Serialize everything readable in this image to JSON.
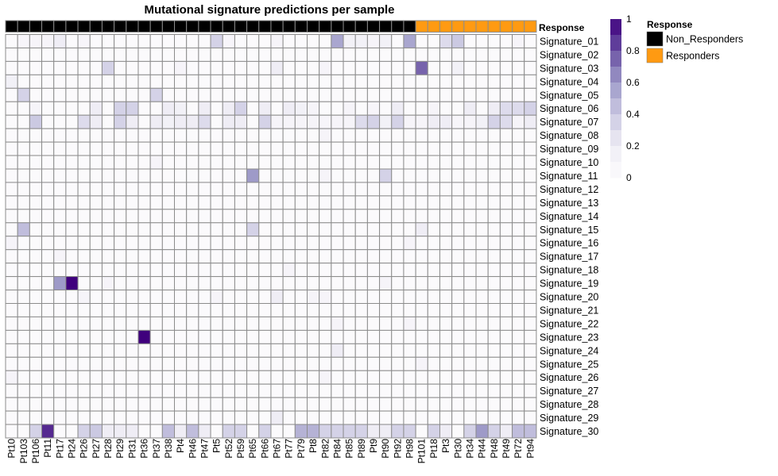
{
  "chart_data": {
    "type": "heatmap",
    "title": "Mutational signature predictions per sample",
    "annotation_label": "Response",
    "samples": [
      "Pt10",
      "Pt103",
      "Pt106",
      "Pt11",
      "Pt17",
      "Pt24",
      "Pt26",
      "Pt27",
      "Pt28",
      "Pt29",
      "Pt31",
      "Pt36",
      "Pt37",
      "Pt38",
      "Pt4",
      "Pt46",
      "Pt47",
      "Pt5",
      "Pt52",
      "Pt59",
      "Pt65",
      "Pt66",
      "Pt67",
      "Pt77",
      "Pt79",
      "Pt8",
      "Pt82",
      "Pt84",
      "Pt85",
      "Pt89",
      "Pt9",
      "Pt90",
      "Pt92",
      "Pt98",
      "Pt101",
      "Pt18",
      "Pt3",
      "Pt30",
      "Pt34",
      "Pt44",
      "Pt48",
      "Pt49",
      "Pt72",
      "Pt94"
    ],
    "response": [
      "Non_Responders",
      "Non_Responders",
      "Non_Responders",
      "Non_Responders",
      "Non_Responders",
      "Non_Responders",
      "Non_Responders",
      "Non_Responders",
      "Non_Responders",
      "Non_Responders",
      "Non_Responders",
      "Non_Responders",
      "Non_Responders",
      "Non_Responders",
      "Non_Responders",
      "Non_Responders",
      "Non_Responders",
      "Non_Responders",
      "Non_Responders",
      "Non_Responders",
      "Non_Responders",
      "Non_Responders",
      "Non_Responders",
      "Non_Responders",
      "Non_Responders",
      "Non_Responders",
      "Non_Responders",
      "Non_Responders",
      "Non_Responders",
      "Non_Responders",
      "Non_Responders",
      "Non_Responders",
      "Non_Responders",
      "Non_Responders",
      "Responders",
      "Responders",
      "Responders",
      "Responders",
      "Responders",
      "Responders",
      "Responders",
      "Responders",
      "Responders",
      "Responders"
    ],
    "signatures": [
      "Signature_01",
      "Signature_02",
      "Signature_03",
      "Signature_04",
      "Signature_05",
      "Signature_06",
      "Signature_07",
      "Signature_08",
      "Signature_09",
      "Signature_10",
      "Signature_11",
      "Signature_12",
      "Signature_13",
      "Signature_14",
      "Signature_15",
      "Signature_16",
      "Signature_17",
      "Signature_18",
      "Signature_19",
      "Signature_20",
      "Signature_21",
      "Signature_22",
      "Signature_23",
      "Signature_24",
      "Signature_25",
      "Signature_26",
      "Signature_27",
      "Signature_28",
      "Signature_29",
      "Signature_30"
    ],
    "values": {
      "Signature_01": {
        "Pt103": 0.08,
        "Pt106": 0.1,
        "Pt11": 0.1,
        "Pt17": 0.2,
        "Pt26": 0.08,
        "Pt5": 0.35,
        "Pt52": 0.08,
        "Pt67": 0.1,
        "Pt84": 0.55,
        "Pt85": 0.15,
        "Pt89": 0.15,
        "Pt9": 0.1,
        "Pt90": 0.15,
        "Pt98": 0.55,
        "Pt3": 0.3,
        "Pt30": 0.4,
        "Pt72": 0.1
      },
      "Signature_03": {
        "Pt28": 0.35,
        "Pt4": 0.1,
        "Pt67": 0.2,
        "Pt82": 0.1,
        "Pt101": 0.75,
        "Pt30": 0.15
      },
      "Signature_04": {
        "Pt10": 0.15
      },
      "Signature_05": {
        "Pt103": 0.35,
        "Pt37": 0.35
      },
      "Signature_06": {
        "Pt106": 0.1,
        "Pt27": 0.2,
        "Pt29": 0.35,
        "Pt31": 0.35,
        "Pt38": 0.2,
        "Pt4": 0.15,
        "Pt47": 0.2,
        "Pt52": 0.2,
        "Pt59": 0.35,
        "Pt66": 0.2,
        "Pt77": 0.2,
        "Pt79": 0.15,
        "Pt8": 0.1,
        "Pt85": 0.1,
        "Pt9": 0.08,
        "Pt92": 0.2,
        "Pt18": 0.1,
        "Pt34": 0.2,
        "Pt48": 0.2,
        "Pt49": 0.3,
        "Pt72": 0.3,
        "Pt94": 0.35
      },
      "Signature_07": {
        "Pt106": 0.4,
        "Pt26": 0.3,
        "Pt27": 0.2,
        "Pt29": 0.35,
        "Pt31": 0.2,
        "Pt37": 0.2,
        "Pt38": 0.15,
        "Pt4": 0.2,
        "Pt46": 0.2,
        "Pt47": 0.3,
        "Pt52": 0.2,
        "Pt59": 0.2,
        "Pt66": 0.35,
        "Pt67": 0.1,
        "Pt77": 0.1,
        "Pt79": 0.1,
        "Pt8": 0.1,
        "Pt82": 0.08,
        "Pt84": 0.1,
        "Pt85": 0.1,
        "Pt89": 0.3,
        "Pt9": 0.35,
        "Pt90": 0.15,
        "Pt92": 0.35,
        "Pt98": 0.1,
        "Pt101": 0.1,
        "Pt18": 0.2,
        "Pt3": 0.2,
        "Pt30": 0.08,
        "Pt34": 0.1,
        "Pt44": 0.15,
        "Pt48": 0.35,
        "Pt49": 0.3,
        "Pt72": 0.1,
        "Pt94": 0.2
      },
      "Signature_08": {
        "Pt82": 0.1
      },
      "Signature_10": {
        "Pt37": 0.1
      },
      "Signature_11": {
        "Pt65": 0.6,
        "Pt82": 0.1,
        "Pt90": 0.35
      },
      "Signature_15": {
        "Pt103": 0.45,
        "Pt65": 0.35,
        "Pt101": 0.2
      },
      "Signature_16": {
        "Pt10": 0.1,
        "Pt98": 0.1
      },
      "Signature_17": {
        "Pt17": 0.1
      },
      "Signature_18": {
        "Pt77": 0.1
      },
      "Signature_19": {
        "Pt17": 0.6,
        "Pt24": 1.0,
        "Pt28": 0.1,
        "Pt90": 0.1
      },
      "Signature_20": {
        "Pt26": 0.1,
        "Pt5": 0.1,
        "Pt67": 0.2,
        "Pt8": 0.1,
        "Pt82": 0.1
      },
      "Signature_22": {
        "Pt84": 0.1,
        "Pt98": 0.1
      },
      "Signature_23": {
        "Pt36": 1.0
      },
      "Signature_24": {
        "Pt84": 0.2
      },
      "Signature_25": {
        "Pt101": 0.1
      },
      "Signature_26": {
        "Pt10": 0.1,
        "Pt82": 0.1
      },
      "Signature_29": {
        "Pt67": 0.2
      },
      "Signature_30": {
        "Pt106": 0.35,
        "Pt11": 0.9,
        "Pt26": 0.35,
        "Pt27": 0.4,
        "Pt28": 0.2,
        "Pt29": 0.2,
        "Pt31": 0.2,
        "Pt38": 0.45,
        "Pt4": 0.2,
        "Pt46": 0.45,
        "Pt47": 0.2,
        "Pt52": 0.35,
        "Pt59": 0.35,
        "Pt66": 0.35,
        "Pt79": 0.5,
        "Pt8": 0.5,
        "Pt82": 0.35,
        "Pt84": 0.35,
        "Pt85": 0.35,
        "Pt89": 0.35,
        "Pt9": 0.2,
        "Pt90": 0.2,
        "Pt92": 0.35,
        "Pt98": 0.35,
        "Pt18": 0.35,
        "Pt3": 0.2,
        "Pt34": 0.35,
        "Pt44": 0.6,
        "Pt48": 0.35,
        "Pt49": 0.2,
        "Pt72": 0.45,
        "Pt94": 0.45
      }
    },
    "baseline_value": 0.02,
    "legend_scale": {
      "ticks": [
        "1",
        "0.8",
        "0.6",
        "0.4",
        "0.2",
        "0"
      ],
      "range": [
        0,
        1
      ]
    },
    "legend_annotation": {
      "title": "Response",
      "items": [
        "Non_Responders",
        "Responders"
      ]
    },
    "colors": {
      "Non_Responders": "#000000",
      "Responders": "#ff9a12",
      "scale_low": "#fcfbfd",
      "scale_high": "#3f007d",
      "grid": "#8c8c8c"
    }
  }
}
